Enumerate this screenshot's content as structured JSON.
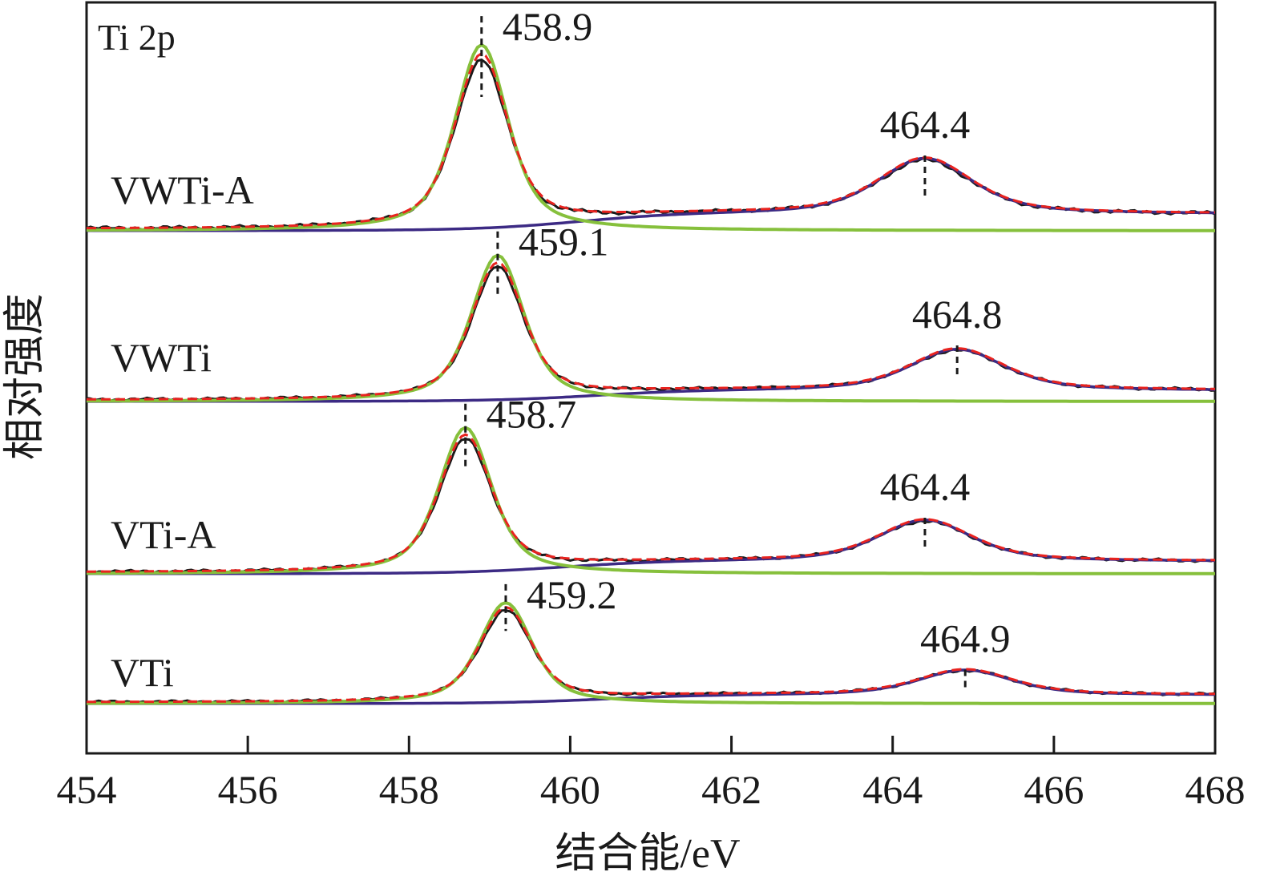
{
  "chart_data": {
    "type": "line",
    "element_label": "Ti 2p",
    "xlabel": "结合能/eV",
    "ylabel": "相对强度",
    "xlim": [
      454,
      468
    ],
    "x_ticks": [
      "454",
      "456",
      "458",
      "460",
      "462",
      "464",
      "466",
      "468"
    ],
    "grid": false,
    "colors": {
      "measured": "#1a1a1a",
      "fit_envelope": "#e8231f",
      "ti_2p3_2": "#86c03c",
      "ti_2p1_2": "#3c2a84",
      "marker": "#1a1a1a"
    },
    "samples": [
      {
        "name": "VWTi-A",
        "peaks": [
          {
            "position": 458.9,
            "label": "458.9",
            "height": 1.0,
            "width": 0.42
          },
          {
            "position": 464.4,
            "label": "464.4",
            "height": 0.3,
            "width": 0.75
          }
        ],
        "baseline": {
          "start": 0.0,
          "end": 0.09
        }
      },
      {
        "name": "VWTi",
        "peaks": [
          {
            "position": 459.1,
            "label": "459.1",
            "height": 0.95,
            "width": 0.42
          },
          {
            "position": 464.8,
            "label": "464.8",
            "height": 0.27,
            "width": 0.75
          }
        ],
        "baseline": {
          "start": 0.0,
          "end": 0.07
        }
      },
      {
        "name": "VTi-A",
        "peaks": [
          {
            "position": 458.7,
            "label": "458.7",
            "height": 0.95,
            "width": 0.42
          },
          {
            "position": 464.4,
            "label": "464.4",
            "height": 0.27,
            "width": 0.75
          }
        ],
        "baseline": {
          "start": 0.0,
          "end": 0.08
        }
      },
      {
        "name": "VTi",
        "peaks": [
          {
            "position": 459.2,
            "label": "459.2",
            "height": 0.72,
            "width": 0.42
          },
          {
            "position": 464.9,
            "label": "464.9",
            "height": 0.18,
            "width": 0.75
          }
        ],
        "baseline": {
          "start": 0.0,
          "end": 0.06
        }
      }
    ]
  }
}
